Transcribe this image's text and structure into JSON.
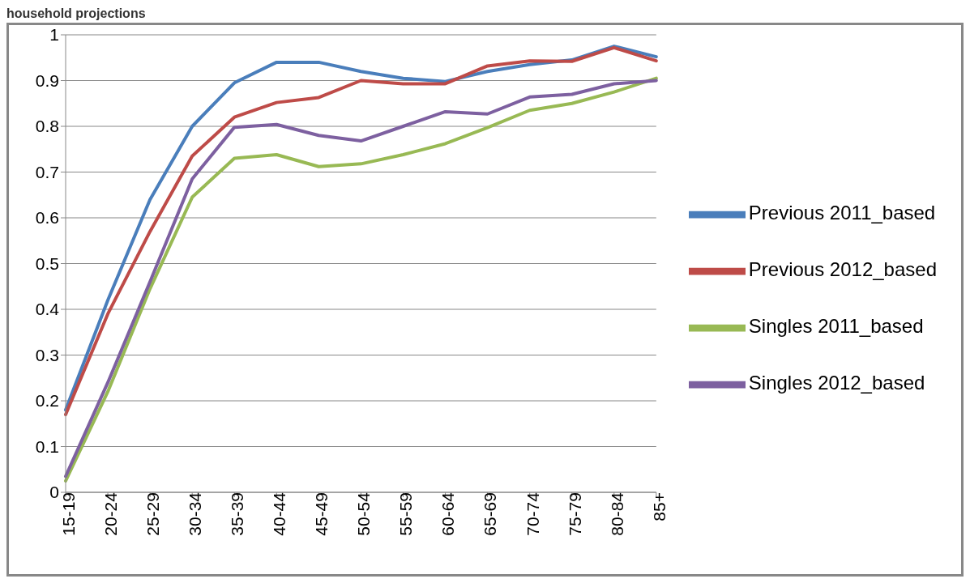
{
  "chart_data": {
    "type": "line",
    "title": "household projections",
    "categories": [
      "15-19",
      "20-24",
      "25-29",
      "30-34",
      "35-39",
      "40-44",
      "45-49",
      "50-54",
      "55-59",
      "60-64",
      "65-69",
      "70-74",
      "75-79",
      "80-84",
      "85+"
    ],
    "series": [
      {
        "name": "Previous 2011_based",
        "color": "#4a7ebb",
        "values": [
          0.18,
          0.42,
          0.64,
          0.8,
          0.895,
          0.94,
          0.94,
          0.92,
          0.905,
          0.898,
          0.92,
          0.935,
          0.945,
          0.975,
          0.952
        ]
      },
      {
        "name": "Previous 2012_based",
        "color": "#be4b48",
        "values": [
          0.17,
          0.39,
          0.57,
          0.735,
          0.82,
          0.852,
          0.863,
          0.9,
          0.893,
          0.893,
          0.932,
          0.943,
          0.942,
          0.972,
          0.943
        ]
      },
      {
        "name": "Singles 2011_based",
        "color": "#98b954",
        "values": [
          0.025,
          0.22,
          0.445,
          0.645,
          0.73,
          0.738,
          0.712,
          0.718,
          0.738,
          0.762,
          0.797,
          0.835,
          0.85,
          0.875,
          0.905
        ]
      },
      {
        "name": "Singles 2012_based",
        "color": "#7d60a0",
        "values": [
          0.035,
          0.24,
          0.46,
          0.685,
          0.798,
          0.804,
          0.78,
          0.768,
          0.8,
          0.832,
          0.827,
          0.864,
          0.87,
          0.893,
          0.9
        ]
      }
    ],
    "ylim": [
      0,
      1
    ],
    "yticks": [
      0,
      0.1,
      0.2,
      0.3,
      0.4,
      0.5,
      0.6,
      0.7,
      0.8,
      0.9,
      1
    ],
    "grid": "y",
    "legend": "right",
    "marker": "none",
    "line_style": "solid"
  }
}
